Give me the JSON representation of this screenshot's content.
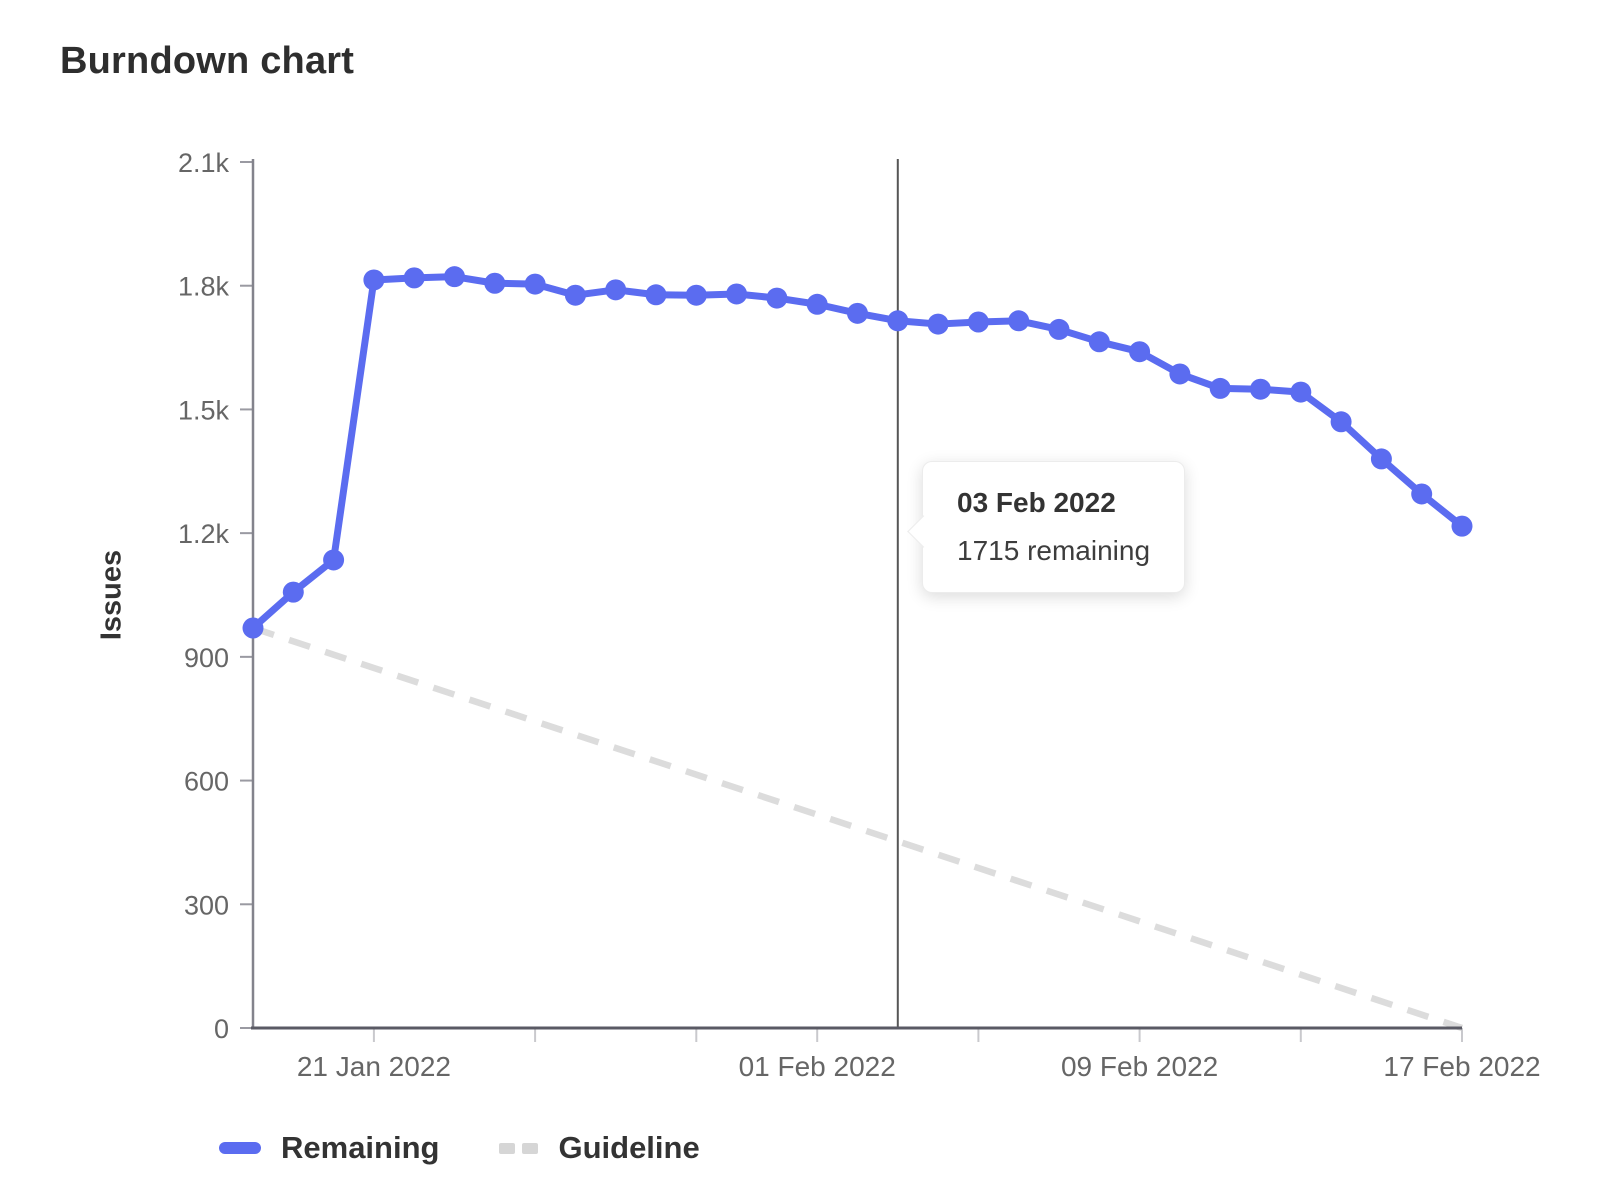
{
  "title": "Burndown chart",
  "y_axis_title": "Issues",
  "tooltip": {
    "title": "03 Feb 2022",
    "value": "1715 remaining"
  },
  "legend": {
    "items": [
      {
        "label": "Remaining",
        "style": "solid",
        "color": "#5b6cf0"
      },
      {
        "label": "Guideline",
        "style": "dashed",
        "color": "#d6d6d6"
      }
    ]
  },
  "colors": {
    "remaining": "#5b6cf0",
    "guideline": "#dcdcdc",
    "today_line": "#565656",
    "x_axis_line": "#5a5a64",
    "y_axis_line": "#83838c",
    "y_tick_mark": "#9a9aa2",
    "x_tick_mark": "#c9c9cd",
    "tick_text": "#666666"
  },
  "chart_data": {
    "type": "line",
    "title": "Burndown chart",
    "xlabel": "",
    "ylabel": "Issues",
    "xlim": [
      "18 Jan 2022",
      "17 Feb 2022"
    ],
    "ylim": [
      0,
      2100
    ],
    "grid": false,
    "legend_position": "bottom-left",
    "dates": [
      "18 Jan 2022",
      "19 Jan 2022",
      "20 Jan 2022",
      "21 Jan 2022",
      "22 Jan 2022",
      "23 Jan 2022",
      "24 Jan 2022",
      "25 Jan 2022",
      "26 Jan 2022",
      "27 Jan 2022",
      "28 Jan 2022",
      "29 Jan 2022",
      "30 Jan 2022",
      "31 Jan 2022",
      "01 Feb 2022",
      "02 Feb 2022",
      "03 Feb 2022",
      "04 Feb 2022",
      "05 Feb 2022",
      "06 Feb 2022",
      "07 Feb 2022",
      "08 Feb 2022",
      "09 Feb 2022",
      "10 Feb 2022",
      "11 Feb 2022",
      "12 Feb 2022",
      "13 Feb 2022",
      "14 Feb 2022",
      "15 Feb 2022",
      "16 Feb 2022",
      "17 Feb 2022"
    ],
    "series": [
      {
        "name": "Remaining",
        "values": [
          970,
          1057,
          1135,
          1814,
          1819,
          1822,
          1806,
          1804,
          1777,
          1790,
          1778,
          1777,
          1780,
          1770,
          1755,
          1733,
          1715,
          1707,
          1712,
          1715,
          1694,
          1664,
          1640,
          1586,
          1551,
          1549,
          1542,
          1470,
          1380,
          1295,
          1217
        ]
      },
      {
        "name": "Guideline",
        "points": [
          {
            "date": "18 Jan 2022",
            "value": 970
          },
          {
            "date": "17 Feb 2022",
            "value": 0
          }
        ]
      }
    ],
    "y_ticks": [
      {
        "v": 0,
        "label": "0"
      },
      {
        "v": 300,
        "label": "300"
      },
      {
        "v": 600,
        "label": "600"
      },
      {
        "v": 900,
        "label": "900"
      },
      {
        "v": 1200,
        "label": "1.2k"
      },
      {
        "v": 1500,
        "label": "1.5k"
      },
      {
        "v": 1800,
        "label": "1.8k"
      },
      {
        "v": 2100,
        "label": "2.1k"
      }
    ],
    "x_ticks": [
      {
        "day": 3,
        "label": "21 Jan 2022"
      },
      {
        "day": 7,
        "label": ""
      },
      {
        "day": 11,
        "label": ""
      },
      {
        "day": 14,
        "label": "01 Feb 2022"
      },
      {
        "day": 18,
        "label": ""
      },
      {
        "day": 22,
        "label": "09 Feb 2022"
      },
      {
        "day": 26,
        "label": ""
      },
      {
        "day": 30,
        "label": "17 Feb 2022"
      }
    ],
    "today": "03 Feb 2022",
    "tooltip_point": {
      "date": "03 Feb 2022",
      "remaining": 1715
    }
  }
}
